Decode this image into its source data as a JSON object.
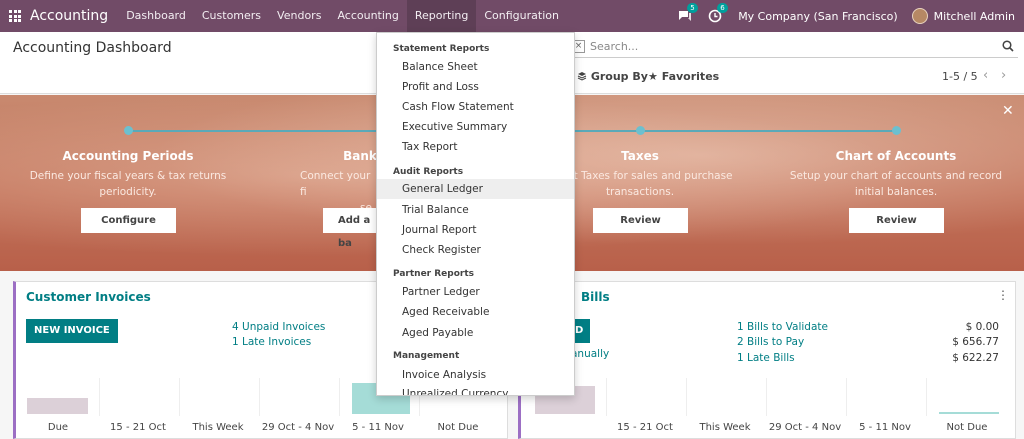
{
  "navbar": {
    "brand": "Accounting",
    "menu": [
      "Dashboard",
      "Customers",
      "Vendors",
      "Accounting",
      "Reporting",
      "Configuration"
    ],
    "messages_count": "5",
    "activities_count": "6",
    "company": "My Company (San Francisco)",
    "user": "Mitchell Admin"
  },
  "control": {
    "title": "Accounting Dashboard",
    "search_placeholder": "Search...",
    "group_by": "Group By",
    "favorites": "Favorites",
    "pager": "1-5 / 5"
  },
  "banner": {
    "steps": [
      {
        "title": "Accounting Periods",
        "desc1": "Define your fiscal years & tax returns",
        "desc2": "periodicity.",
        "button": "Configure"
      },
      {
        "title": "Bank",
        "desc1": "Connect your fi",
        "desc2": "se",
        "button": "Add a ba"
      },
      {
        "title": "Taxes",
        "desc1": "efault Taxes for sales and purchase",
        "desc2": "transactions.",
        "button": "Review"
      },
      {
        "title": "Chart of Accounts",
        "desc1": "Setup your chart of accounts and record",
        "desc2": "initial balances.",
        "button": "Review"
      }
    ]
  },
  "customer_card": {
    "title": "Customer Invoices",
    "button": "NEW INVOICE",
    "links": [
      "4 Unpaid Invoices",
      "1 Late Invoices"
    ],
    "axis": [
      "Due",
      "15 - 21 Oct",
      "This Week",
      "29 Oct - 4 Nov",
      "5 - 11 Nov",
      "Not Due"
    ]
  },
  "vendor_card": {
    "title": "Bills",
    "button": "D",
    "upload": "anually",
    "links": [
      "1 Bills to Validate",
      "2 Bills to Pay",
      "1 Late Bills"
    ],
    "amounts": [
      "$ 0.00",
      "$ 656.77",
      "$ 622.27"
    ],
    "axis": [
      "15 - 21 Oct",
      "This Week",
      "29 Oct - 4 Nov",
      "5 - 11 Nov",
      "Not Due"
    ]
  },
  "dropdown": {
    "sections": [
      {
        "header": "Statement Reports",
        "items": [
          "Balance Sheet",
          "Profit and Loss",
          "Cash Flow Statement",
          "Executive Summary",
          "Tax Report"
        ]
      },
      {
        "header": "Audit Reports",
        "items": [
          "General Ledger",
          "Trial Balance",
          "Journal Report",
          "Check Register"
        ]
      },
      {
        "header": "Partner Reports",
        "items": [
          "Partner Ledger",
          "Aged Receivable",
          "Aged Payable"
        ]
      },
      {
        "header": "Management",
        "items": [
          "Invoice Analysis",
          "Unrealized Currency Gains/Losses"
        ]
      }
    ],
    "hovered": "General Ledger"
  },
  "colors": {
    "navbar": "#714b67",
    "accent": "#017e84",
    "card_border": "#9c6fc4"
  }
}
